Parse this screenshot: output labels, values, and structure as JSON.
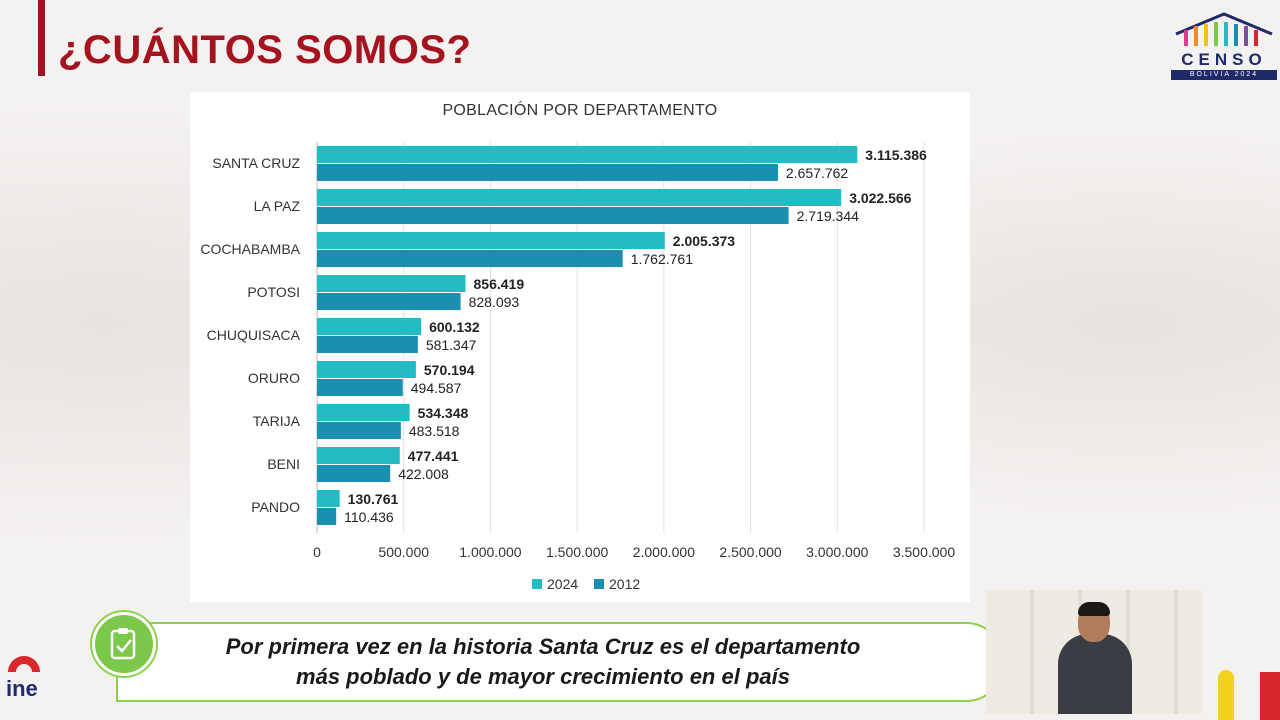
{
  "header": {
    "title": "¿CUÁNTOS SOMOS?"
  },
  "logo": {
    "word": "CENSO",
    "sub": "BOLIVIA 2024"
  },
  "ine": {
    "word": "ine"
  },
  "colors": {
    "brand_red": "#a3141f",
    "series_2024": "#24bcc4",
    "series_2012": "#1a8fb0",
    "caption_green": "#8cd14b"
  },
  "chart_data": {
    "type": "bar",
    "orientation": "horizontal",
    "title": "POBLACIÓN POR DEPARTAMENTO",
    "categories": [
      "SANTA CRUZ",
      "LA PAZ",
      "COCHABAMBA",
      "POTOSI",
      "CHUQUISACA",
      "ORURO",
      "TARIJA",
      "BENI",
      "PANDO"
    ],
    "series": [
      {
        "name": "2024",
        "color": "#24bcc4",
        "values": [
          3115386,
          3022566,
          2005373,
          856419,
          600132,
          570194,
          534348,
          477441,
          130761
        ],
        "labels": [
          "3.115.386",
          "3.022.566",
          "2.005.373",
          "856.419",
          "600.132",
          "570.194",
          "534.348",
          "477.441",
          "130.761"
        ]
      },
      {
        "name": "2012",
        "color": "#1a8fb0",
        "values": [
          2657762,
          2719344,
          1762761,
          828093,
          581347,
          494587,
          483518,
          422008,
          110436
        ],
        "labels": [
          "2.657.762",
          "2.719.344",
          "1.762.761",
          "828.093",
          "581.347",
          "494.587",
          "483.518",
          "422.008",
          "110.436"
        ]
      }
    ],
    "xlim": [
      0,
      3500000
    ],
    "x_ticks": [
      0,
      500000,
      1000000,
      1500000,
      2000000,
      2500000,
      3000000,
      3500000
    ],
    "x_tick_labels": [
      "0",
      "500.000",
      "1.000.000",
      "1.500.000",
      "2.000.000",
      "2.500.000",
      "3.000.000",
      "3.500.000"
    ],
    "grid": "vertical",
    "legend": "bottom-center"
  },
  "caption": {
    "line1": "Por primera vez en la historia Santa Cruz es el departamento",
    "line2": "más poblado y de mayor crecimiento en el país"
  }
}
